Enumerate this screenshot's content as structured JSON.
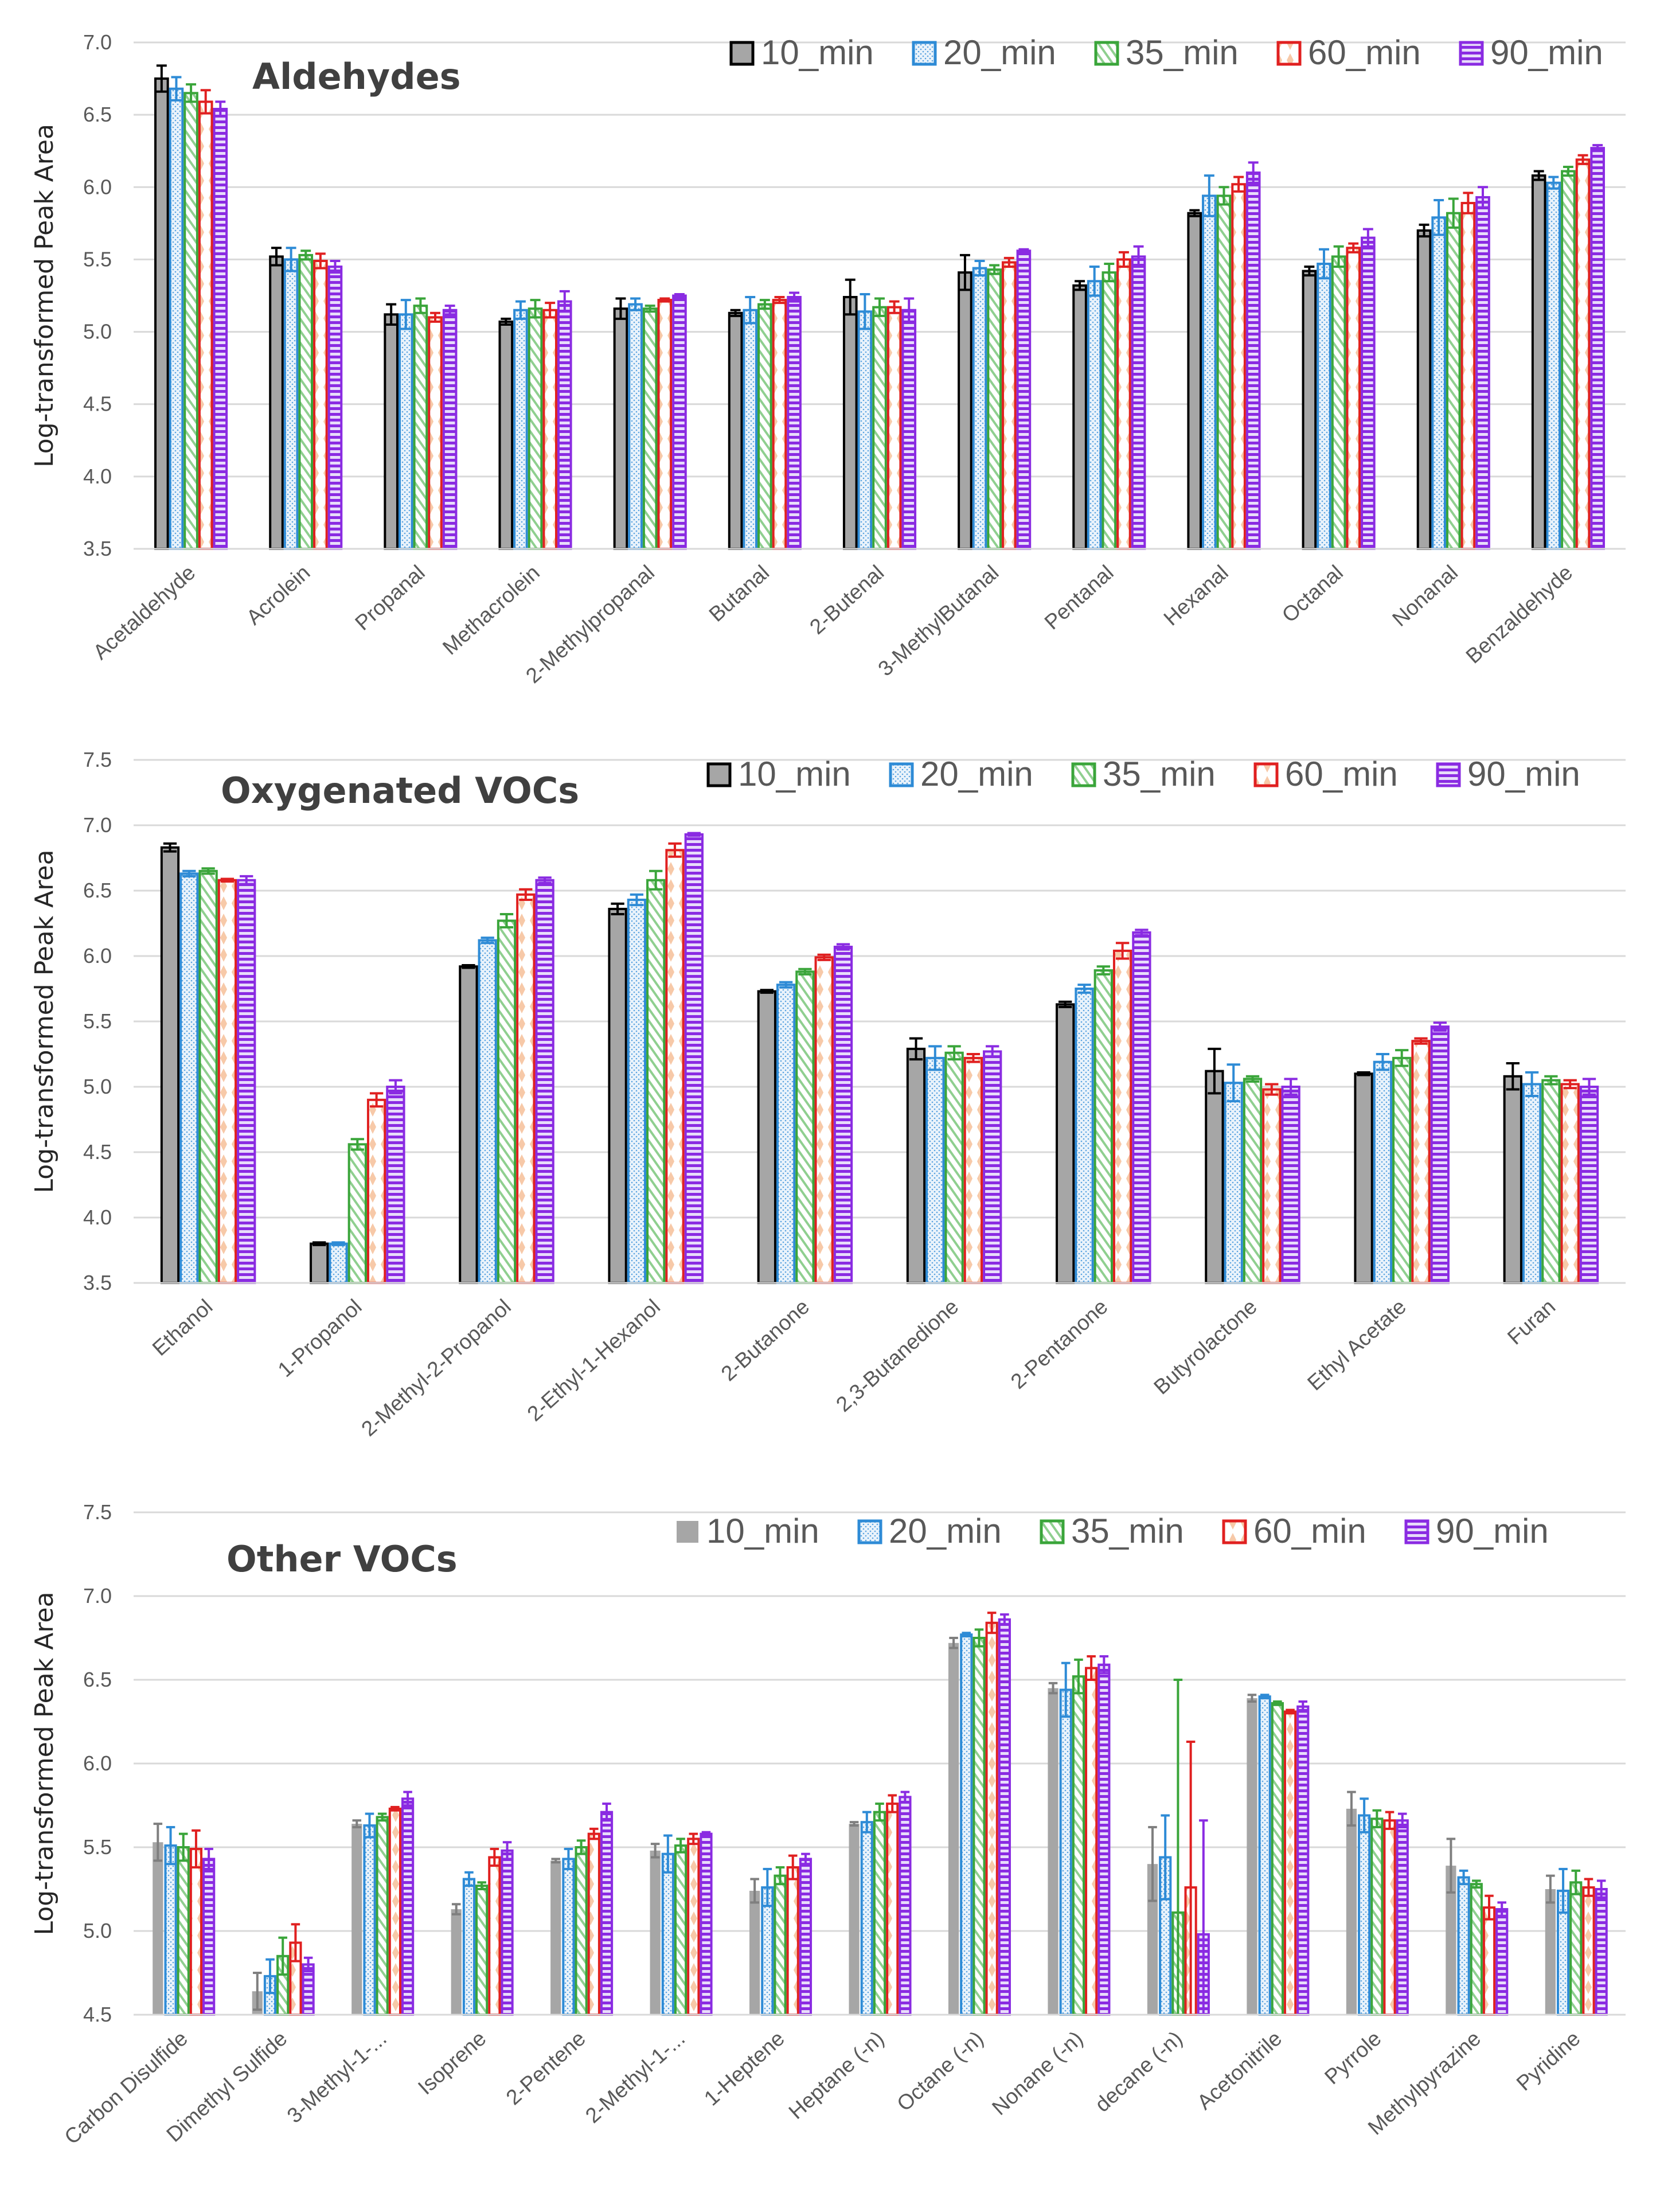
{
  "series_names": [
    "10_min",
    "20_min",
    "35_min",
    "60_min",
    "90_min"
  ],
  "colors": {
    "10_min": "#7f7f7f",
    "20_min": "#2e8bd6",
    "35_min": "#3aa53a",
    "60_min": "#e02020",
    "90_min": "#8a2be2",
    "grid": "#d9d9d9",
    "fill_10": "#a6a6a6"
  },
  "chart_data": [
    {
      "type": "bar",
      "title": "Aldehydes",
      "ylabel": "Log-transformed Peak Area",
      "xlabel": "",
      "ylim": [
        3.5,
        7.0
      ],
      "yticks": [
        "3.5",
        "4.0",
        "4.5",
        "5.0",
        "5.5",
        "6.0",
        "6.5",
        "7.0"
      ],
      "grid": true,
      "legend": "top-right",
      "categories": [
        "Acetaldehyde",
        "Acrolein",
        "Propanal",
        "Methacrolein",
        "2-Methylpropanal",
        "Butanal",
        "2-Butenal",
        "3-MethylButanal",
        "Pentanal",
        "Hexanal",
        "Octanal",
        "Nonanal",
        "Benzaldehyde"
      ],
      "series": [
        {
          "name": "10_min",
          "values": [
            6.75,
            5.52,
            5.12,
            5.07,
            5.16,
            5.13,
            5.24,
            5.41,
            5.32,
            5.82,
            5.42,
            5.7,
            6.08
          ],
          "errors": [
            0.09,
            0.06,
            0.07,
            0.02,
            0.07,
            0.02,
            0.12,
            0.12,
            0.03,
            0.02,
            0.03,
            0.04,
            0.03
          ]
        },
        {
          "name": "20_min",
          "values": [
            6.68,
            5.5,
            5.12,
            5.15,
            5.19,
            5.15,
            5.14,
            5.44,
            5.35,
            5.94,
            5.47,
            5.79,
            6.03
          ],
          "errors": [
            0.08,
            0.08,
            0.1,
            0.06,
            0.04,
            0.09,
            0.12,
            0.05,
            0.1,
            0.14,
            0.1,
            0.12,
            0.04
          ]
        },
        {
          "name": "35_min",
          "values": [
            6.65,
            5.53,
            5.18,
            5.16,
            5.16,
            5.19,
            5.17,
            5.43,
            5.41,
            5.94,
            5.52,
            5.82,
            6.11
          ],
          "errors": [
            0.06,
            0.03,
            0.05,
            0.06,
            0.02,
            0.03,
            0.06,
            0.03,
            0.06,
            0.06,
            0.07,
            0.1,
            0.03
          ]
        },
        {
          "name": "60_min",
          "values": [
            6.59,
            5.49,
            5.1,
            5.15,
            5.22,
            5.22,
            5.17,
            5.48,
            5.5,
            6.02,
            5.58,
            5.89,
            6.19
          ],
          "errors": [
            0.08,
            0.05,
            0.03,
            0.05,
            0.01,
            0.02,
            0.04,
            0.03,
            0.05,
            0.05,
            0.03,
            0.07,
            0.03
          ]
        },
        {
          "name": "90_min",
          "values": [
            6.54,
            5.45,
            5.15,
            5.21,
            5.25,
            5.24,
            5.15,
            5.56,
            5.52,
            6.1,
            5.65,
            5.93,
            6.27
          ],
          "errors": [
            0.05,
            0.04,
            0.03,
            0.07,
            0.01,
            0.03,
            0.08,
            0.01,
            0.07,
            0.07,
            0.06,
            0.07,
            0.02
          ]
        }
      ]
    },
    {
      "type": "bar",
      "title": "Oxygenated  VOCs",
      "ylabel": "Log-transformed Peak Area",
      "xlabel": "",
      "ylim": [
        3.5,
        7.5
      ],
      "yticks": [
        "3.5",
        "4.0",
        "4.5",
        "5.0",
        "5.5",
        "6.0",
        "6.5",
        "7.0",
        "7.5"
      ],
      "grid": true,
      "legend": "top-right",
      "categories": [
        "Ethanol",
        "1-Propanol",
        "2-Methyl-2-Propanol",
        "2-Ethyl-1-Hexanol",
        "2-Butanone",
        "2,3-Butanedione",
        "2-Pentanone",
        "Butyrolactone",
        "Ethyl Acetate",
        "Furan"
      ],
      "series": [
        {
          "name": "10_min",
          "values": [
            6.83,
            3.8,
            5.92,
            6.36,
            5.73,
            5.29,
            5.63,
            5.12,
            5.1,
            5.08
          ],
          "errors": [
            0.03,
            0.01,
            0.01,
            0.04,
            0.01,
            0.08,
            0.02,
            0.17,
            0.01,
            0.1
          ]
        },
        {
          "name": "20_min",
          "values": [
            6.63,
            3.8,
            6.12,
            6.43,
            5.78,
            5.22,
            5.75,
            5.03,
            5.19,
            5.02
          ],
          "errors": [
            0.02,
            0.01,
            0.02,
            0.04,
            0.02,
            0.09,
            0.03,
            0.14,
            0.06,
            0.09
          ]
        },
        {
          "name": "35_min",
          "values": [
            6.65,
            4.56,
            6.27,
            6.58,
            5.88,
            5.26,
            5.89,
            5.06,
            5.22,
            5.05
          ],
          "errors": [
            0.02,
            0.04,
            0.05,
            0.07,
            0.02,
            0.05,
            0.03,
            0.02,
            0.06,
            0.03
          ]
        },
        {
          "name": "60_min",
          "values": [
            6.58,
            4.9,
            6.47,
            6.81,
            5.99,
            5.22,
            6.04,
            4.98,
            5.35,
            5.02
          ],
          "errors": [
            0.01,
            0.05,
            0.04,
            0.05,
            0.02,
            0.03,
            0.06,
            0.04,
            0.02,
            0.03
          ]
        },
        {
          "name": "90_min",
          "values": [
            6.58,
            5.0,
            6.58,
            6.93,
            6.07,
            5.27,
            6.18,
            5.0,
            5.46,
            5.0
          ],
          "errors": [
            0.03,
            0.05,
            0.02,
            0.01,
            0.02,
            0.04,
            0.02,
            0.06,
            0.03,
            0.06
          ]
        }
      ]
    },
    {
      "type": "bar",
      "title": "Other VOCs",
      "ylabel": "Log-transformed Peak Area",
      "xlabel": "",
      "ylim": [
        4.5,
        7.5
      ],
      "yticks": [
        "4.5",
        "5.0",
        "5.5",
        "6.0",
        "6.5",
        "7.0",
        "7.5"
      ],
      "grid": true,
      "legend": "top-right",
      "categories": [
        "Carbon Disulfide",
        "Dimethyl Sulfide",
        "3-Methyl-1-...",
        "Isoprene",
        "2-Pentene",
        "2-Methyl-1-...",
        "1-Heptene",
        "Heptane (-n)",
        "Octane (-n)",
        "Nonane (-n)",
        "decane (-n)",
        "Acetonitrile",
        "Pyrrole",
        "Methylpyrazine",
        "Pyridine"
      ],
      "series": [
        {
          "name": "10_min",
          "values": [
            5.53,
            4.64,
            5.64,
            5.13,
            5.42,
            5.48,
            5.24,
            5.64,
            6.72,
            6.45,
            5.4,
            6.39,
            5.73,
            5.39,
            5.25
          ],
          "errors": [
            0.11,
            0.11,
            0.02,
            0.03,
            0.01,
            0.04,
            0.07,
            0.01,
            0.03,
            0.03,
            0.22,
            0.02,
            0.1,
            0.16,
            0.08
          ]
        },
        {
          "name": "20_min",
          "values": [
            5.51,
            4.73,
            5.63,
            5.31,
            5.43,
            5.46,
            5.26,
            5.65,
            6.77,
            6.44,
            5.44,
            6.4,
            5.69,
            5.32,
            5.24
          ],
          "errors": [
            0.11,
            0.1,
            0.07,
            0.04,
            0.06,
            0.11,
            0.11,
            0.06,
            0.01,
            0.16,
            0.25,
            0.01,
            0.1,
            0.04,
            0.13
          ]
        },
        {
          "name": "35_min",
          "values": [
            5.5,
            4.85,
            5.68,
            5.27,
            5.5,
            5.51,
            5.33,
            5.71,
            6.75,
            6.52,
            5.11,
            6.36,
            5.67,
            5.28,
            5.29
          ],
          "errors": [
            0.08,
            0.11,
            0.02,
            0.02,
            0.04,
            0.04,
            0.05,
            0.05,
            0.05,
            0.1,
            1.39,
            0.01,
            0.05,
            0.02,
            0.07
          ]
        },
        {
          "name": "60_min",
          "values": [
            5.49,
            4.93,
            5.73,
            5.44,
            5.58,
            5.55,
            5.38,
            5.76,
            6.84,
            6.57,
            5.26,
            6.31,
            5.66,
            5.14,
            5.26
          ],
          "errors": [
            0.11,
            0.11,
            0.01,
            0.05,
            0.03,
            0.03,
            0.07,
            0.05,
            0.06,
            0.07,
            0.87,
            0.01,
            0.05,
            0.07,
            0.05
          ]
        },
        {
          "name": "90_min",
          "values": [
            5.43,
            4.8,
            5.79,
            5.48,
            5.71,
            5.58,
            5.43,
            5.8,
            6.86,
            6.59,
            4.98,
            6.34,
            5.66,
            5.13,
            5.25
          ],
          "errors": [
            0.06,
            0.04,
            0.04,
            0.05,
            0.05,
            0.01,
            0.03,
            0.03,
            0.03,
            0.05,
            0.68,
            0.03,
            0.04,
            0.04,
            0.05
          ]
        }
      ]
    }
  ]
}
